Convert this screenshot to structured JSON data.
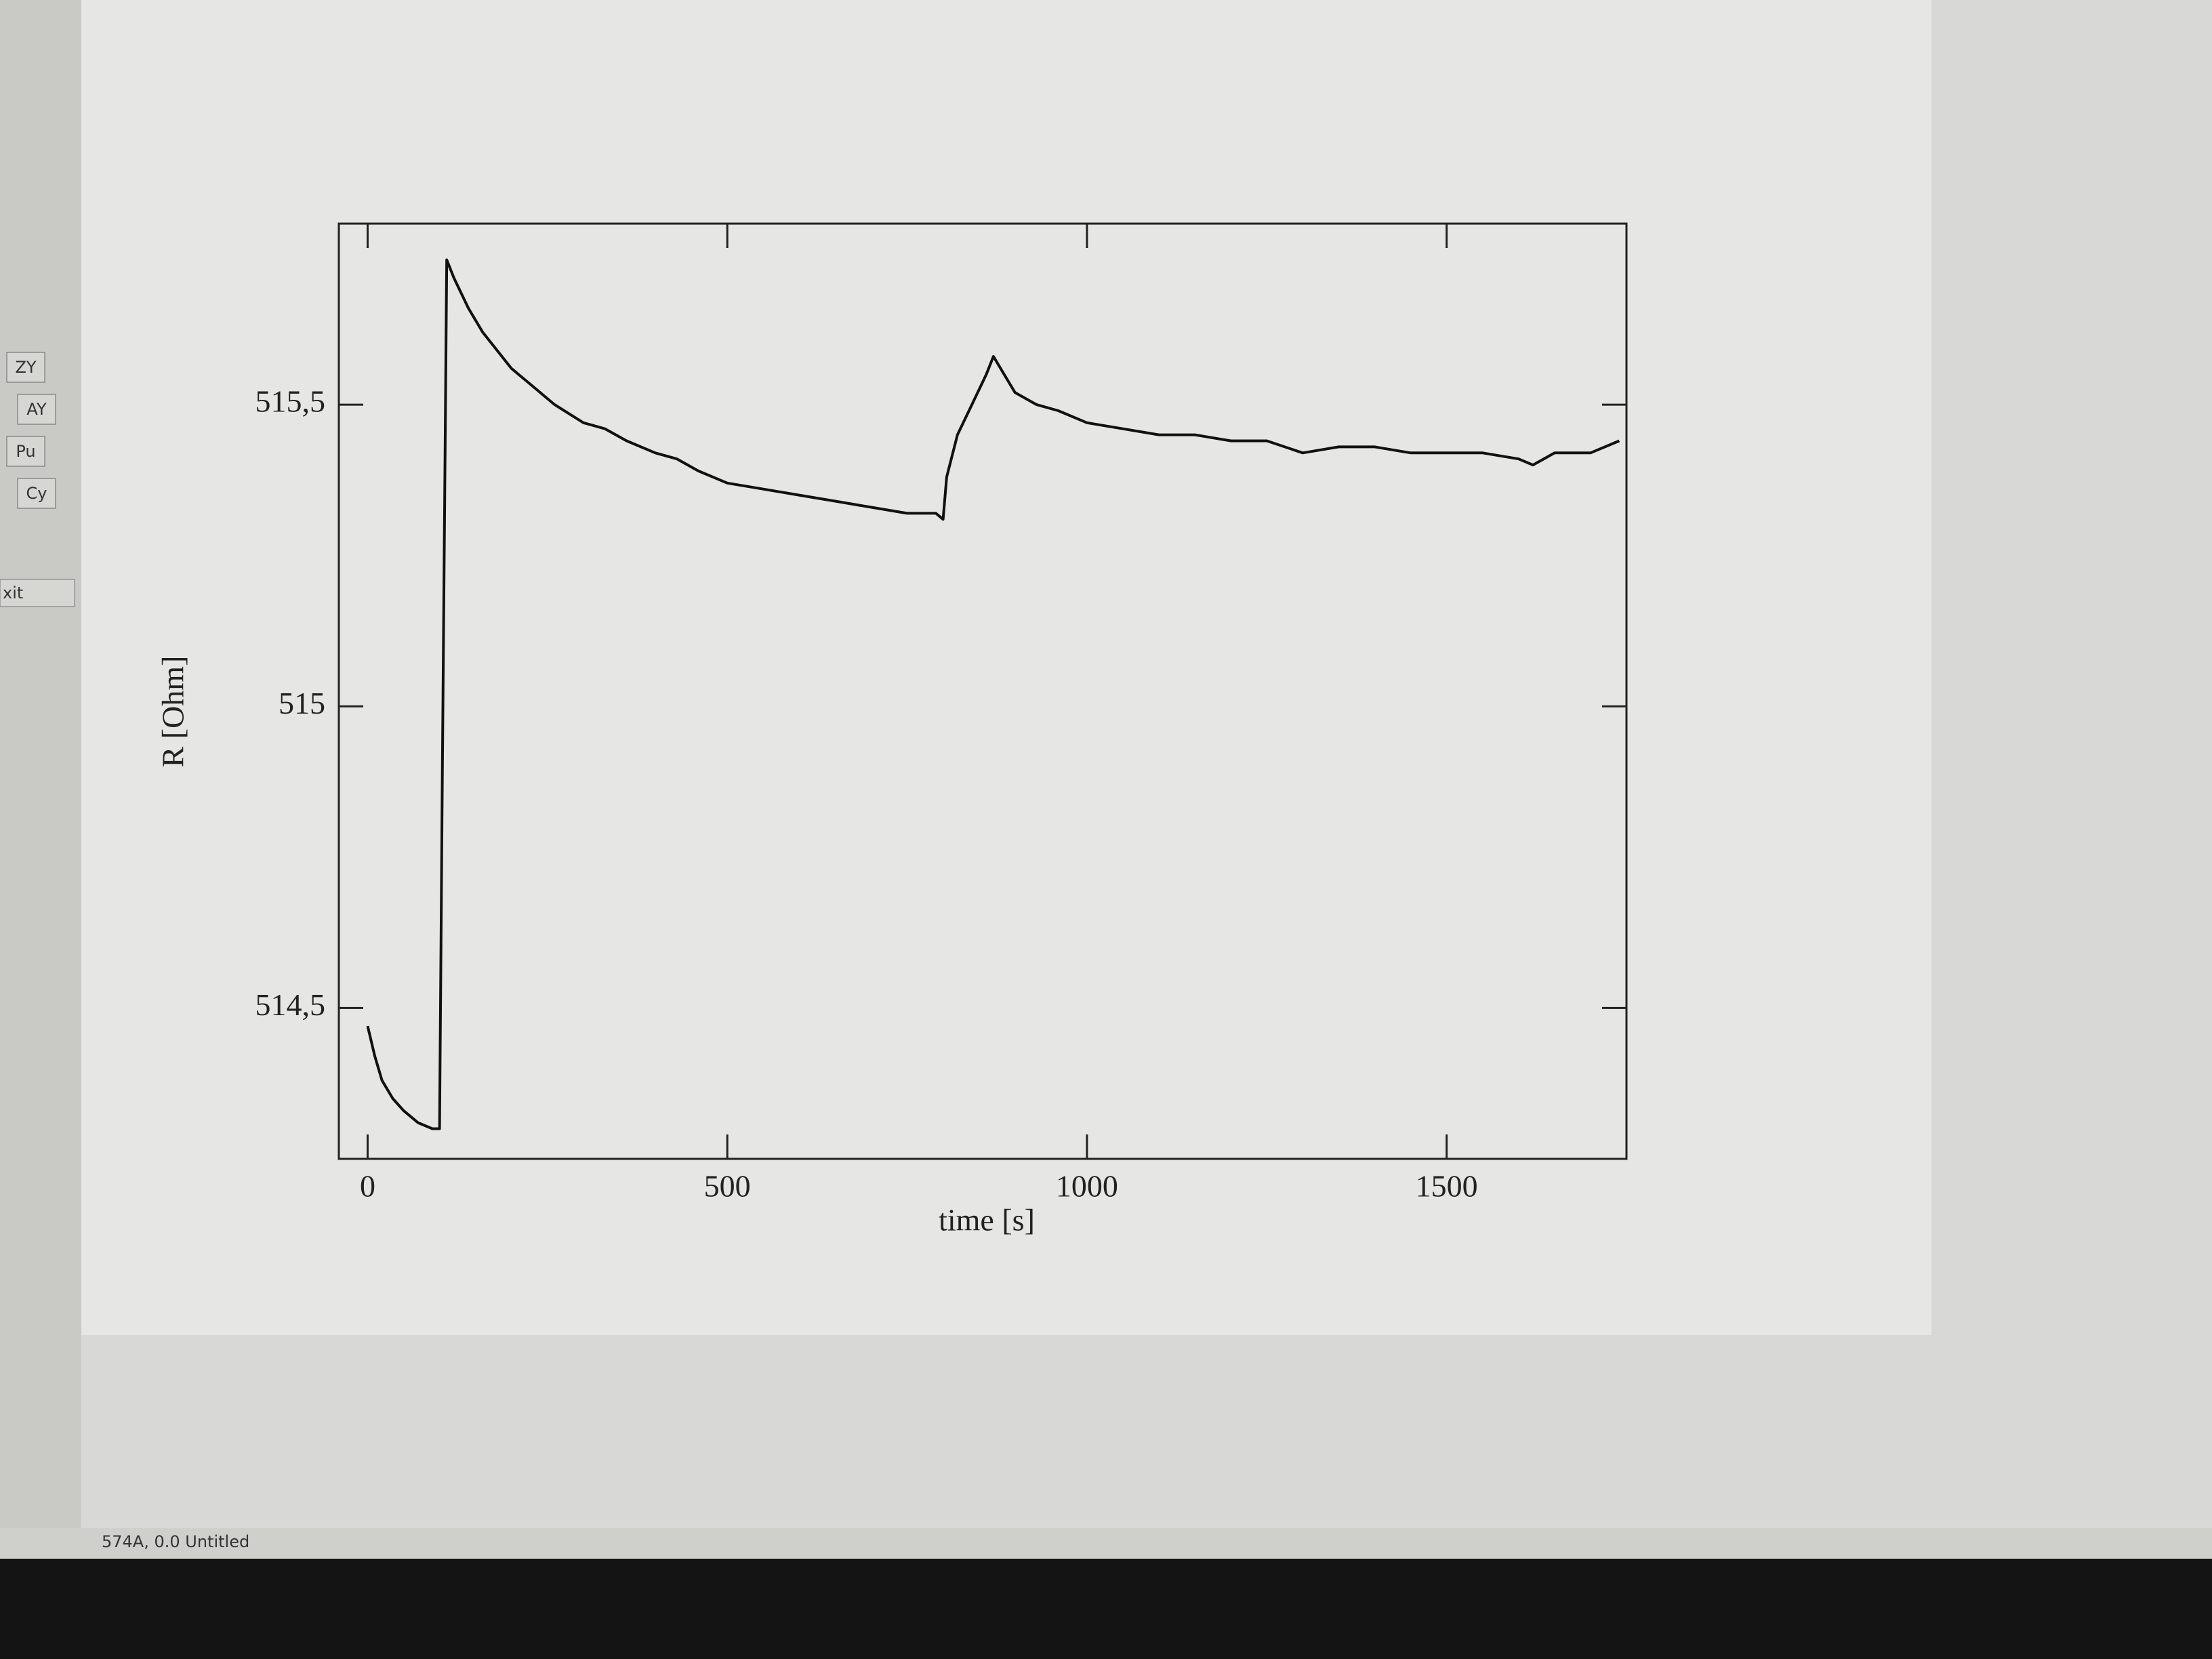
{
  "chart_data": {
    "type": "line",
    "xlabel": "time [s]",
    "ylabel": "R [Ohm]",
    "color": "#111111",
    "x": [
      0,
      10,
      20,
      35,
      50,
      70,
      90,
      100,
      104,
      110,
      120,
      140,
      160,
      180,
      200,
      230,
      260,
      300,
      330,
      360,
      400,
      430,
      460,
      500,
      550,
      600,
      650,
      700,
      750,
      790,
      800,
      805,
      820,
      840,
      860,
      870,
      885,
      900,
      930,
      960,
      1000,
      1050,
      1100,
      1150,
      1200,
      1250,
      1300,
      1350,
      1400,
      1450,
      1500,
      1550,
      1600,
      1620,
      1650,
      1700,
      1740
    ],
    "values": [
      514.47,
      514.42,
      514.38,
      514.35,
      514.33,
      514.31,
      514.3,
      514.3,
      514.9,
      515.74,
      515.71,
      515.66,
      515.62,
      515.59,
      515.56,
      515.53,
      515.5,
      515.47,
      515.46,
      515.44,
      515.42,
      515.41,
      515.39,
      515.37,
      515.36,
      515.35,
      515.34,
      515.33,
      515.32,
      515.32,
      515.31,
      515.38,
      515.45,
      515.5,
      515.55,
      515.58,
      515.55,
      515.52,
      515.5,
      515.49,
      515.47,
      515.46,
      515.45,
      515.45,
      515.44,
      515.44,
      515.42,
      515.43,
      515.43,
      515.42,
      515.42,
      515.42,
      515.41,
      515.4,
      515.42,
      515.42,
      515.44
    ],
    "xlim": [
      -40,
      1750
    ],
    "ylim": [
      514.25,
      515.8
    ],
    "xticks": [
      0,
      500,
      1000,
      1500
    ],
    "yticks": [
      {
        "value": 514.5,
        "label": "514,5"
      },
      515,
      {
        "value": 515.5,
        "label": "515,5"
      }
    ]
  },
  "window": {
    "buttons": [
      "ZY",
      "AY",
      "Pu",
      "Cy"
    ],
    "exit": "xit",
    "status": "574A, 0.0  Untitled"
  }
}
